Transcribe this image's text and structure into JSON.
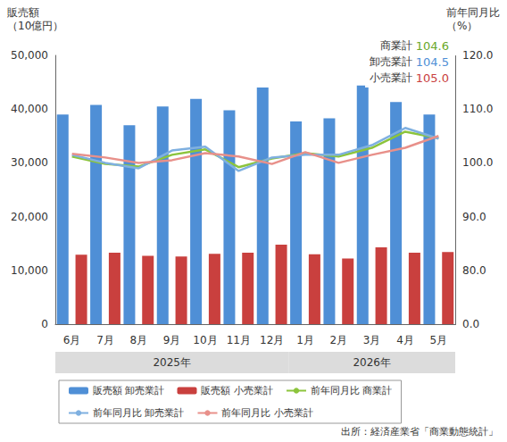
{
  "chart_data": {
    "type": "bar",
    "y_label": "販売額（10億円）",
    "y2_label": "前年同月比（%）",
    "source": "出所：経済産業省「商業動態統計」",
    "categories": [
      "6月",
      "7月",
      "8月",
      "9月",
      "10月",
      "11月",
      "12月",
      "1月",
      "2月",
      "3月",
      "4月",
      "5月"
    ],
    "category_groups": [
      {
        "label": "2025年",
        "from": "6月",
        "to": "12月"
      },
      {
        "label": "2026年",
        "from": "1月",
        "to": "5月"
      }
    ],
    "ylim": [
      0,
      50000
    ],
    "yticks": [
      0,
      {
        "value": 10000,
        "label": "10,000"
      },
      {
        "value": 20000,
        "label": "20,000"
      },
      {
        "value": 30000,
        "label": "30,000"
      },
      {
        "value": 40000,
        "label": "40,000"
      },
      {
        "value": 50000,
        "label": "50,000"
      }
    ],
    "y2lim": [
      0,
      120
    ],
    "y2ticks": [
      {
        "value": 0,
        "label": "0.0"
      },
      {
        "value": 80,
        "label": "80.0"
      },
      {
        "value": 90,
        "label": "90.0"
      },
      {
        "value": 100,
        "label": "100.0"
      },
      {
        "value": 110,
        "label": "110.0"
      },
      {
        "value": 120,
        "label": "120.0"
      }
    ],
    "grid": false,
    "legend": "bottom",
    "series": [
      {
        "name": "販売額 卸売業計",
        "type": "bar",
        "color": "#4f8fd6",
        "values": [
          39000,
          40800,
          37000,
          40500,
          41900,
          39800,
          44000,
          37700,
          38300,
          44400,
          41300,
          39000
        ]
      },
      {
        "name": "販売額 小売業計",
        "type": "bar",
        "color": "#c9403e",
        "values": [
          12900,
          13300,
          12700,
          12600,
          13100,
          13300,
          14800,
          13000,
          12200,
          14300,
          13300,
          13400
        ]
      },
      {
        "name": "前年同月比 商業計",
        "type": "line",
        "axis": "y2",
        "color": "#8cc43c",
        "values": [
          101.2,
          99.8,
          99.3,
          101.5,
          102.5,
          99.2,
          100.8,
          101.8,
          101.2,
          102.8,
          105.8,
          104.6
        ]
      },
      {
        "name": "前年同月比 卸売業計",
        "type": "line",
        "axis": "y2",
        "color": "#7fb0e0",
        "values": [
          101.5,
          100.0,
          99.0,
          102.3,
          103.0,
          98.5,
          101.0,
          101.5,
          101.5,
          103.3,
          106.5,
          104.5
        ]
      },
      {
        "name": "前年同月比 小売業計",
        "type": "line",
        "axis": "y2",
        "color": "#e8908a",
        "values": [
          101.7,
          101.0,
          100.0,
          100.5,
          101.8,
          101.2,
          99.8,
          102.0,
          100.0,
          101.5,
          102.8,
          105.0
        ]
      }
    ],
    "annotations": [
      {
        "text": "商業計",
        "value_label": "104.6",
        "color": "#6aa82a"
      },
      {
        "text": "卸売業計",
        "value_label": "104.5",
        "color": "#4f8fd6"
      },
      {
        "text": "小売業計",
        "value_label": "105.0",
        "color": "#c9403e"
      }
    ]
  }
}
